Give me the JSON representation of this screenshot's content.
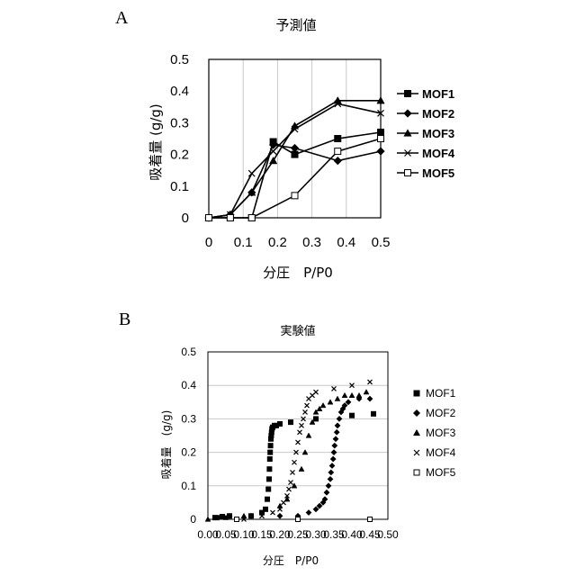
{
  "chart_data": [
    {
      "panel": "A",
      "type": "line",
      "title": "予測値",
      "xlabel": "分圧　P/P0",
      "ylabel": "吸着量 (g/g)",
      "xlim": [
        0,
        0.5
      ],
      "ylim": [
        0,
        0.5
      ],
      "xticks": [
        "0",
        "0.1",
        "0.2",
        "0.3",
        "0.4",
        "0.5"
      ],
      "yticks": [
        "0",
        "0.1",
        "0.2",
        "0.3",
        "0.4",
        "0.5"
      ],
      "grid": "vertical",
      "legend": "right",
      "series": [
        {
          "name": "MOF1",
          "marker": "square-filled",
          "x": [
            0,
            0.0625,
            0.125,
            0.1875,
            0.25,
            0.375,
            0.5
          ],
          "y": [
            0,
            0,
            0,
            0.24,
            0.2,
            0.25,
            0.27
          ]
        },
        {
          "name": "MOF2",
          "marker": "diamond-filled",
          "x": [
            0,
            0.0625,
            0.125,
            0.1875,
            0.25,
            0.375,
            0.5
          ],
          "y": [
            0,
            0.01,
            0.08,
            0.23,
            0.22,
            0.18,
            0.21
          ]
        },
        {
          "name": "MOF3",
          "marker": "triangle-filled",
          "x": [
            0,
            0.0625,
            0.125,
            0.1875,
            0.25,
            0.375,
            0.5
          ],
          "y": [
            0,
            0.01,
            0.08,
            0.18,
            0.29,
            0.37,
            0.37
          ]
        },
        {
          "name": "MOF4",
          "marker": "x",
          "x": [
            0,
            0.0625,
            0.125,
            0.1875,
            0.25,
            0.375,
            0.5
          ],
          "y": [
            0,
            0.01,
            0.14,
            0.21,
            0.28,
            0.36,
            0.33
          ]
        },
        {
          "name": "MOF5",
          "marker": "square-open",
          "x": [
            0,
            0.0625,
            0.125,
            0.25,
            0.375,
            0.5
          ],
          "y": [
            0,
            0,
            0,
            0.07,
            0.21,
            0.25
          ]
        }
      ]
    },
    {
      "panel": "B",
      "type": "scatter",
      "title": "実験値",
      "xlabel": "分圧　P/P0",
      "ylabel": "吸着量　(g/g)",
      "xlim": [
        0,
        0.5
      ],
      "ylim": [
        0,
        0.5
      ],
      "xticks": [
        "0.00",
        "0.05",
        "0.10",
        "0.15",
        "0.20",
        "0.25",
        "0.30",
        "0.35",
        "0.40",
        "0.45",
        "0.50"
      ],
      "yticks": [
        "0",
        "0.1",
        "0.2",
        "0.3",
        "0.4",
        "0.5"
      ],
      "grid": "horizontal",
      "legend": "right",
      "series": [
        {
          "name": "MOF1",
          "marker": "square-filled",
          "x": [
            0.02,
            0.04,
            0.06,
            0.12,
            0.15,
            0.16,
            0.165,
            0.168,
            0.17,
            0.171,
            0.172,
            0.173,
            0.174,
            0.175,
            0.176,
            0.177,
            0.178,
            0.18,
            0.185,
            0.19,
            0.2,
            0.23,
            0.3,
            0.4,
            0.46
          ],
          "y": [
            0.005,
            0.008,
            0.01,
            0.01,
            0.02,
            0.03,
            0.06,
            0.09,
            0.12,
            0.15,
            0.18,
            0.2,
            0.22,
            0.24,
            0.25,
            0.26,
            0.27,
            0.275,
            0.28,
            0.28,
            0.285,
            0.29,
            0.3,
            0.31,
            0.315
          ]
        },
        {
          "name": "MOF2",
          "marker": "diamond-filled",
          "x": [
            0.03,
            0.06,
            0.12,
            0.2,
            0.25,
            0.28,
            0.3,
            0.31,
            0.32,
            0.325,
            0.33,
            0.335,
            0.34,
            0.342,
            0.345,
            0.348,
            0.35,
            0.352,
            0.355,
            0.358,
            0.36,
            0.365,
            0.37,
            0.375,
            0.38,
            0.39,
            0.42,
            0.45
          ],
          "y": [
            0.005,
            0.01,
            0.01,
            0.01,
            0.01,
            0.02,
            0.03,
            0.04,
            0.05,
            0.06,
            0.08,
            0.1,
            0.12,
            0.14,
            0.16,
            0.18,
            0.2,
            0.22,
            0.24,
            0.26,
            0.28,
            0.3,
            0.32,
            0.33,
            0.34,
            0.35,
            0.36,
            0.36
          ]
        },
        {
          "name": "MOF3",
          "marker": "triangle-filled",
          "x": [
            0.0,
            0.05,
            0.1,
            0.15,
            0.2,
            0.22,
            0.24,
            0.26,
            0.27,
            0.28,
            0.29,
            0.3,
            0.31,
            0.32,
            0.34,
            0.36,
            0.38,
            0.4,
            0.42,
            0.44
          ],
          "y": [
            0.0,
            0.005,
            0.01,
            0.02,
            0.04,
            0.06,
            0.1,
            0.15,
            0.2,
            0.25,
            0.29,
            0.32,
            0.33,
            0.34,
            0.35,
            0.36,
            0.37,
            0.37,
            0.37,
            0.38
          ]
        },
        {
          "name": "MOF4",
          "marker": "x",
          "x": [
            0.1,
            0.15,
            0.18,
            0.2,
            0.21,
            0.22,
            0.225,
            0.23,
            0.235,
            0.24,
            0.245,
            0.25,
            0.255,
            0.26,
            0.265,
            0.27,
            0.275,
            0.28,
            0.29,
            0.3,
            0.35,
            0.4,
            0.45
          ],
          "y": [
            0.0,
            0.01,
            0.02,
            0.03,
            0.05,
            0.07,
            0.09,
            0.11,
            0.14,
            0.17,
            0.2,
            0.23,
            0.26,
            0.28,
            0.3,
            0.32,
            0.34,
            0.36,
            0.37,
            0.38,
            0.39,
            0.4,
            0.41
          ]
        },
        {
          "name": "MOF5",
          "marker": "square-open",
          "x": [
            0.08,
            0.25,
            0.45
          ],
          "y": [
            0.0,
            0.0,
            0.0
          ]
        }
      ]
    }
  ],
  "panels": {
    "a": {
      "letter": "A"
    },
    "b": {
      "letter": "B"
    }
  }
}
